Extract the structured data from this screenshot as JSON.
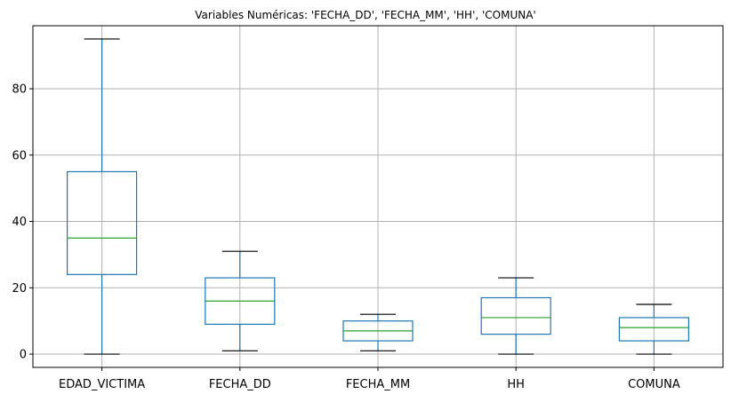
{
  "chart_data": {
    "type": "box",
    "title": "Variables Numéricas: 'FECHA_DD', 'FECHA_MM', 'HH', 'COMUNA'",
    "xlabel": "",
    "ylabel": "",
    "ylim": [
      -4,
      99
    ],
    "yticks": [
      0,
      20,
      40,
      60,
      80
    ],
    "grid": true,
    "categories": [
      "EDAD_VICTIMA",
      "FECHA_DD",
      "FECHA_MM",
      "HH",
      "COMUNA"
    ],
    "boxes": [
      {
        "whisker_low": 0,
        "q1": 24,
        "median": 35,
        "q3": 55,
        "whisker_high": 95
      },
      {
        "whisker_low": 1,
        "q1": 9,
        "median": 16,
        "q3": 23,
        "whisker_high": 31
      },
      {
        "whisker_low": 1,
        "q1": 4,
        "median": 7,
        "q3": 10,
        "whisker_high": 12
      },
      {
        "whisker_low": 0,
        "q1": 6,
        "median": 11,
        "q3": 17,
        "whisker_high": 23
      },
      {
        "whisker_low": 0,
        "q1": 4,
        "median": 8,
        "q3": 11,
        "whisker_high": 15
      }
    ],
    "colors": {
      "box": "#1f77b4",
      "median": "#2ca02c",
      "cap": "#000000",
      "grid": "#b0b0b0",
      "axis": "#000000"
    }
  }
}
